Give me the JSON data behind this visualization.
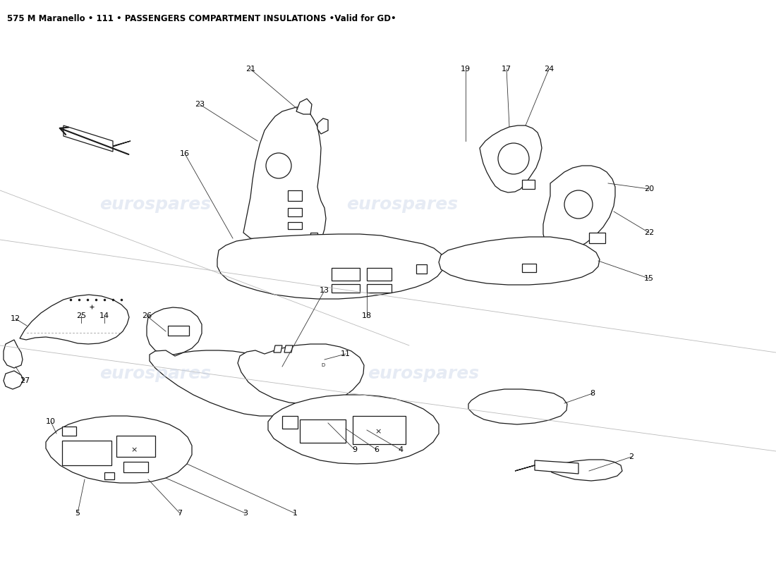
{
  "title": "575 M Maranello • 111 • PASSENGERS COMPARTMENT INSULATIONS •Valid for GD•",
  "title_fontsize": 8.5,
  "background_color": "#ffffff",
  "line_color": "#1a1a1a",
  "watermark_color": "#c8d4e8",
  "watermark_alpha": 0.45,
  "watermark_text": "eurospares",
  "label_fontsize": 8,
  "callout_line_color": "#333333",
  "diagonal_line_color": "#bbbbbb",
  "part_fill": "#ffffff",
  "part_edge": "#1a1a1a",
  "part_lw": 0.9
}
